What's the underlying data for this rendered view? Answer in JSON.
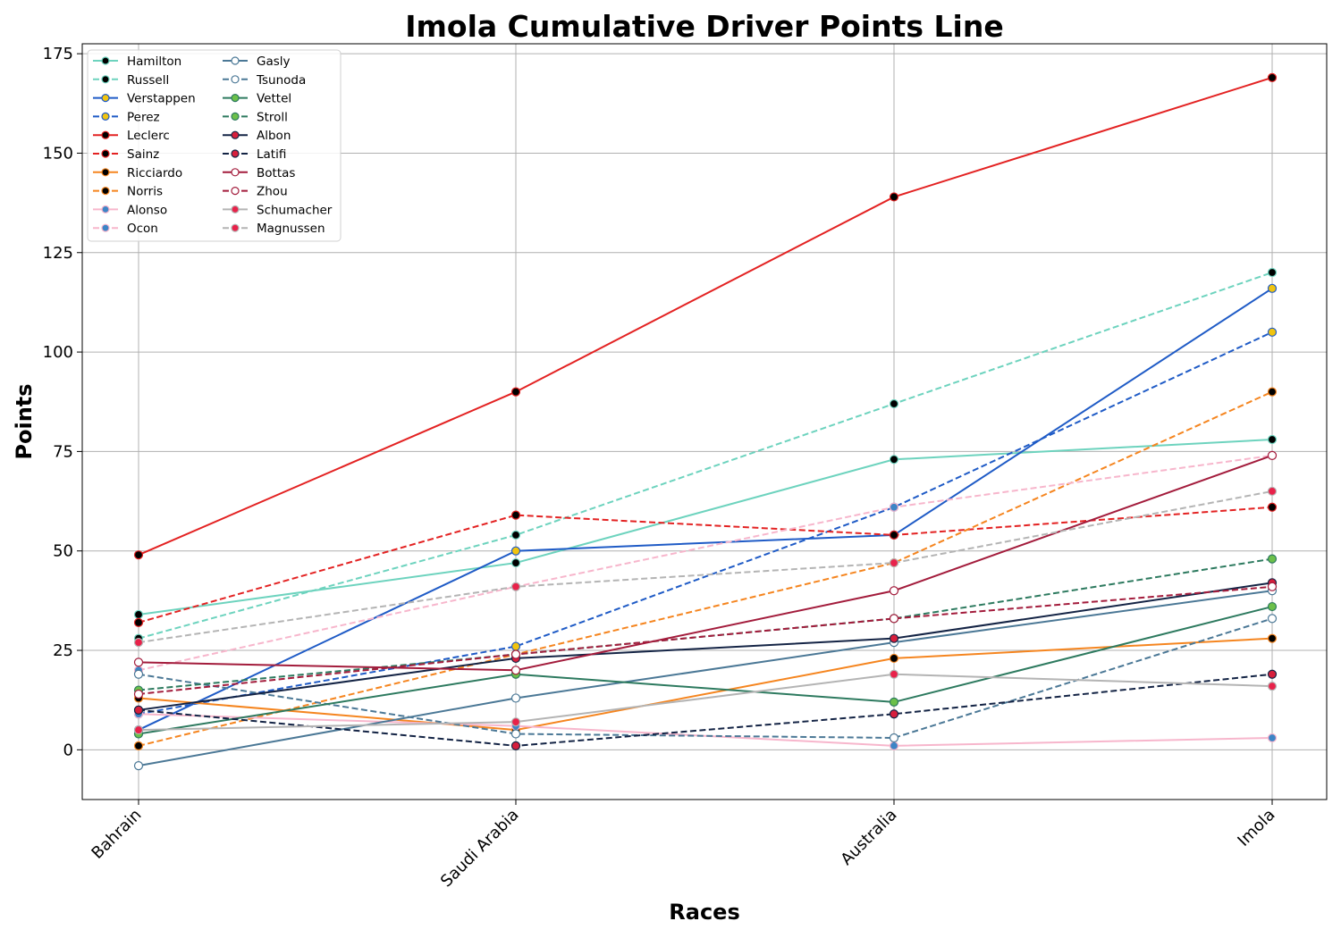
{
  "chart_data": {
    "type": "line",
    "title": "Imola Cumulative Driver Points Line",
    "xlabel": "Races",
    "ylabel": "Points",
    "categories": [
      "Bahrain",
      "Saudi Arabia",
      "Australia",
      "Imola"
    ],
    "ylim": [
      -12.5,
      177.5
    ],
    "yticks": [
      0,
      25,
      50,
      75,
      100,
      125,
      150,
      175
    ],
    "grid": true,
    "legend_position": "top-left",
    "series": [
      {
        "name": "Hamilton",
        "values": [
          34,
          47,
          73,
          78
        ],
        "color": "#6dd3be",
        "dash": "solid",
        "marker_fill": "#000000",
        "marker_edge": "#6dd3be"
      },
      {
        "name": "Russell",
        "values": [
          28,
          54,
          87,
          120
        ],
        "color": "#6dd3be",
        "dash": "dashed",
        "marker_fill": "#000000",
        "marker_edge": "#6dd3be"
      },
      {
        "name": "Verstappen",
        "values": [
          5,
          50,
          54,
          116
        ],
        "color": "#1f5bc6",
        "dash": "solid",
        "marker_fill": "#f1c40f",
        "marker_edge": "#1f5bc6"
      },
      {
        "name": "Perez",
        "values": [
          9,
          26,
          61,
          105
        ],
        "color": "#1f5bc6",
        "dash": "dashed",
        "marker_fill": "#f1c40f",
        "marker_edge": "#1f5bc6"
      },
      {
        "name": "Leclerc",
        "values": [
          49,
          90,
          139,
          169
        ],
        "color": "#e32222",
        "dash": "solid",
        "marker_fill": "#000000",
        "marker_edge": "#e32222"
      },
      {
        "name": "Sainz",
        "values": [
          32,
          59,
          54,
          61
        ],
        "color": "#e32222",
        "dash": "dashed",
        "marker_fill": "#000000",
        "marker_edge": "#e32222"
      },
      {
        "name": "Ricciardo",
        "values": [
          13,
          5,
          23,
          28
        ],
        "color": "#f5851f",
        "dash": "solid",
        "marker_fill": "#000000",
        "marker_edge": "#f5851f"
      },
      {
        "name": "Norris",
        "values": [
          1,
          24,
          47,
          90
        ],
        "color": "#f5851f",
        "dash": "dashed",
        "marker_fill": "#000000",
        "marker_edge": "#f5851f"
      },
      {
        "name": "Alonso",
        "values": [
          9,
          6,
          1,
          3
        ],
        "color": "#f7b6cc",
        "dash": "solid",
        "marker_fill": "#3d85c6",
        "marker_edge": "#f7b6cc"
      },
      {
        "name": "Ocon",
        "values": [
          20,
          41,
          61,
          74
        ],
        "color": "#f7b6cc",
        "dash": "dashed",
        "marker_fill": "#3d85c6",
        "marker_edge": "#f7b6cc"
      },
      {
        "name": "Gasly",
        "values": [
          -4,
          13,
          27,
          40
        ],
        "color": "#4b7896",
        "dash": "solid",
        "marker_fill": "#ffffff",
        "marker_edge": "#4b7896"
      },
      {
        "name": "Tsunoda",
        "values": [
          19,
          4,
          3,
          33
        ],
        "color": "#4b7896",
        "dash": "dashed",
        "marker_fill": "#ffffff",
        "marker_edge": "#4b7896"
      },
      {
        "name": "Vettel",
        "values": [
          4,
          19,
          12,
          36
        ],
        "color": "#2d7a5f",
        "dash": "solid",
        "marker_fill": "#6cc04a",
        "marker_edge": "#2d7a5f"
      },
      {
        "name": "Stroll",
        "values": [
          15,
          24,
          33,
          48
        ],
        "color": "#2d7a5f",
        "dash": "dashed",
        "marker_fill": "#6cc04a",
        "marker_edge": "#2d7a5f"
      },
      {
        "name": "Albon",
        "values": [
          10,
          23,
          28,
          42
        ],
        "color": "#142445",
        "dash": "solid",
        "marker_fill": "#d71f3c",
        "marker_edge": "#142445"
      },
      {
        "name": "Latifi",
        "values": [
          10,
          1,
          9,
          19
        ],
        "color": "#142445",
        "dash": "dashed",
        "marker_fill": "#d71f3c",
        "marker_edge": "#142445"
      },
      {
        "name": "Bottas",
        "values": [
          22,
          20,
          40,
          74
        ],
        "color": "#a31c3c",
        "dash": "solid",
        "marker_fill": "#ffffff",
        "marker_edge": "#a31c3c"
      },
      {
        "name": "Zhou",
        "values": [
          14,
          24,
          33,
          41
        ],
        "color": "#a31c3c",
        "dash": "dashed",
        "marker_fill": "#ffffff",
        "marker_edge": "#a31c3c"
      },
      {
        "name": "Schumacher",
        "values": [
          5,
          7,
          19,
          16
        ],
        "color": "#b4b4b4",
        "dash": "solid",
        "marker_fill": "#e8224a",
        "marker_edge": "#b4b4b4"
      },
      {
        "name": "Magnussen",
        "values": [
          27,
          41,
          47,
          65
        ],
        "color": "#b4b4b4",
        "dash": "dashed",
        "marker_fill": "#e8224a",
        "marker_edge": "#b4b4b4"
      }
    ]
  }
}
